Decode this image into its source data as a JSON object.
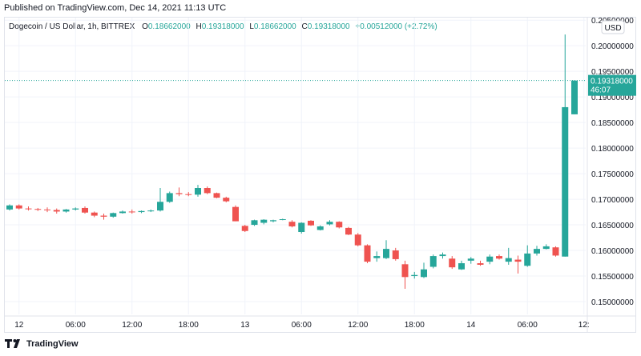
{
  "header": {
    "published": "Published on TradingView.com, Dec 14, 2021 11:13 UTC"
  },
  "legend": {
    "symbol": "Dogecoin / US Dollar, 1h, BITTREX",
    "o_label": "O",
    "o_value": "0.18662000",
    "h_label": "H",
    "h_value": "0.19318000",
    "l_label": "L",
    "l_value": "0.18662000",
    "c_label": "C",
    "c_value": "0.19318000",
    "change": "+0.00512000 (+2.72%)"
  },
  "price_axis": {
    "currency": "USD",
    "current_price": "0.19318000",
    "countdown": "46:07"
  },
  "footer": {
    "brand": "TradingView"
  },
  "colors": {
    "up": "#26a69a",
    "down": "#ef5350",
    "grid": "#f0f3fa",
    "text": "#131722"
  },
  "chart_data": {
    "type": "candlestick",
    "ylim": [
      0.1475,
      0.2055
    ],
    "y_ticks": [
      "0.15000000",
      "0.15500000",
      "0.16000000",
      "0.16500000",
      "0.17000000",
      "0.17500000",
      "0.18000000",
      "0.18500000",
      "0.19000000",
      "0.19500000",
      "0.20000000",
      "0.20500000"
    ],
    "x_ticks": [
      {
        "label": "12",
        "index": 1
      },
      {
        "label": "06:00",
        "index": 7
      },
      {
        "label": "12:00",
        "index": 13
      },
      {
        "label": "18:00",
        "index": 19
      },
      {
        "label": "13",
        "index": 25
      },
      {
        "label": "06:00",
        "index": 31
      },
      {
        "label": "12:00",
        "index": 37
      },
      {
        "label": "18:00",
        "index": 43
      },
      {
        "label": "14",
        "index": 49
      },
      {
        "label": "06:00",
        "index": 55
      },
      {
        "label": "12:",
        "index": 61
      }
    ],
    "candles": [
      [
        0.168,
        0.169,
        0.1678,
        0.1688
      ],
      [
        0.1688,
        0.169,
        0.168,
        0.1682
      ],
      [
        0.1682,
        0.1686,
        0.1678,
        0.1681
      ],
      [
        0.1681,
        0.1683,
        0.1677,
        0.168
      ],
      [
        0.168,
        0.1684,
        0.1675,
        0.1679
      ],
      [
        0.1679,
        0.1682,
        0.1672,
        0.1676
      ],
      [
        0.1676,
        0.1681,
        0.1674,
        0.168
      ],
      [
        0.168,
        0.1684,
        0.1678,
        0.1682
      ],
      [
        0.1683,
        0.1686,
        0.1672,
        0.1674
      ],
      [
        0.1674,
        0.1676,
        0.1665,
        0.1668
      ],
      [
        0.1668,
        0.1672,
        0.166,
        0.1666
      ],
      [
        0.1666,
        0.1674,
        0.1664,
        0.1673
      ],
      [
        0.1673,
        0.1678,
        0.1672,
        0.1676
      ],
      [
        0.1676,
        0.168,
        0.1672,
        0.1675
      ],
      [
        0.1675,
        0.1678,
        0.1673,
        0.1677
      ],
      [
        0.1677,
        0.168,
        0.1675,
        0.1678
      ],
      [
        0.1678,
        0.1722,
        0.1676,
        0.1695
      ],
      [
        0.1695,
        0.1715,
        0.1693,
        0.1712
      ],
      [
        0.1712,
        0.1723,
        0.1706,
        0.171
      ],
      [
        0.171,
        0.1714,
        0.1706,
        0.1709
      ],
      [
        0.1709,
        0.1728,
        0.1705,
        0.1722
      ],
      [
        0.1722,
        0.1725,
        0.171,
        0.1712
      ],
      [
        0.1712,
        0.1713,
        0.1702,
        0.1703
      ],
      [
        0.1703,
        0.1705,
        0.1694,
        0.1696
      ],
      [
        0.1685,
        0.1688,
        0.1657,
        0.1657
      ],
      [
        0.1648,
        0.165,
        0.1636,
        0.1638
      ],
      [
        0.165,
        0.166,
        0.1648,
        0.1659
      ],
      [
        0.1654,
        0.1661,
        0.1651,
        0.166
      ],
      [
        0.1657,
        0.166,
        0.1655,
        0.1659
      ],
      [
        0.1661,
        0.1662,
        0.1659,
        0.1661
      ],
      [
        0.1656,
        0.1659,
        0.1645,
        0.1647
      ],
      [
        0.1636,
        0.1655,
        0.1633,
        0.1654
      ],
      [
        0.1658,
        0.1659,
        0.1648,
        0.1649
      ],
      [
        0.164,
        0.1649,
        0.1639,
        0.1647
      ],
      [
        0.1651,
        0.1659,
        0.1649,
        0.1656
      ],
      [
        0.1656,
        0.1657,
        0.1643,
        0.1645
      ],
      [
        0.1644,
        0.1646,
        0.163,
        0.1631
      ],
      [
        0.1631,
        0.1634,
        0.1608,
        0.161
      ],
      [
        0.161,
        0.1612,
        0.1575,
        0.1578
      ],
      [
        0.1585,
        0.1598,
        0.1578,
        0.1589
      ],
      [
        0.1585,
        0.162,
        0.1583,
        0.1603
      ],
      [
        0.16,
        0.1605,
        0.158,
        0.1583
      ],
      [
        0.1573,
        0.158,
        0.1525,
        0.1548
      ],
      [
        0.155,
        0.1558,
        0.1545,
        0.1552
      ],
      [
        0.1548,
        0.1576,
        0.1546,
        0.1563
      ],
      [
        0.1568,
        0.1592,
        0.1565,
        0.1589
      ],
      [
        0.1589,
        0.1596,
        0.1584,
        0.1592
      ],
      [
        0.1584,
        0.1589,
        0.1564,
        0.1567
      ],
      [
        0.1563,
        0.158,
        0.1562,
        0.1575
      ],
      [
        0.158,
        0.1587,
        0.1574,
        0.1584
      ],
      [
        0.1575,
        0.158,
        0.157,
        0.1572
      ],
      [
        0.1578,
        0.1592,
        0.1573,
        0.1588
      ],
      [
        0.1589,
        0.1592,
        0.1582,
        0.1584
      ],
      [
        0.1578,
        0.1605,
        0.1572,
        0.1585
      ],
      [
        0.1582,
        0.159,
        0.1555,
        0.1578
      ],
      [
        0.157,
        0.161,
        0.1568,
        0.1594
      ],
      [
        0.1594,
        0.1609,
        0.159,
        0.1603
      ],
      [
        0.1603,
        0.1612,
        0.1602,
        0.1608
      ],
      [
        0.1606,
        0.1608,
        0.1588,
        0.159
      ],
      [
        0.1588,
        0.2022,
        0.1588,
        0.188
      ],
      [
        0.1866,
        0.1932,
        0.1866,
        0.1932
      ]
    ]
  }
}
